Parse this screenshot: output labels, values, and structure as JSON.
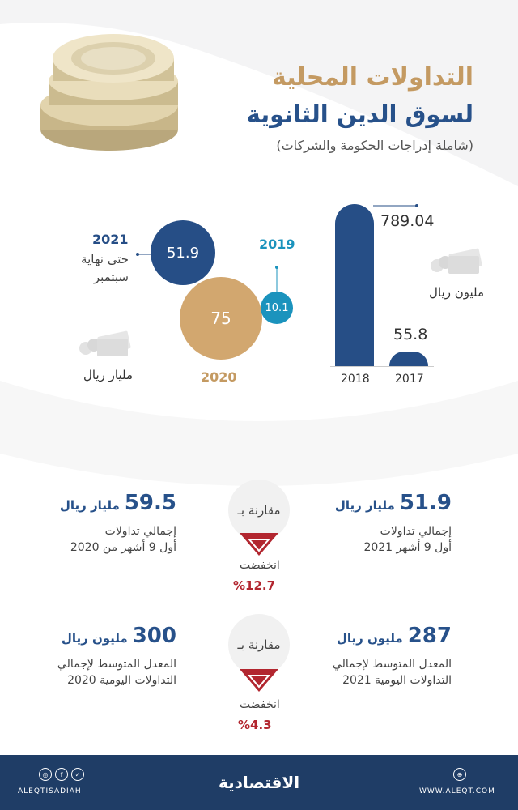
{
  "header": {
    "title_line1": "التداولات المحلية",
    "title_line2": "لسوق الدين الثانوية",
    "subtitle": "(شاملة إدراجات الحكومة والشركات)"
  },
  "chart_data": [
    {
      "type": "bar",
      "categories": [
        "2017",
        "2018"
      ],
      "values": [
        55.8,
        789.04
      ],
      "unit": "مليون ريال"
    },
    {
      "type": "bubble",
      "categories": [
        "2019",
        "2020",
        "2021"
      ],
      "values": [
        10.1,
        75,
        51.9
      ],
      "unit": "مليار ريال",
      "notes": {
        "2021": "حتى نهاية سبتمبر"
      }
    }
  ],
  "bars": {
    "y2017": {
      "label": "2017",
      "value": "55.8"
    },
    "y2018": {
      "label": "2018",
      "value": "789.04"
    },
    "unit": "مليون ريال"
  },
  "bubbles": {
    "y2021": {
      "year": "2021",
      "value": "51.9",
      "note_line1": "حتى نهاية",
      "note_line2": "سبتمبر"
    },
    "y2020": {
      "year": "2020",
      "value": "75"
    },
    "y2019": {
      "year": "2019",
      "value": "10.1"
    },
    "unit": "مليار ريال"
  },
  "comparisons": [
    {
      "right_value": "51.9",
      "right_unit": "مليار ريال",
      "right_desc1": "إجمالي تداولات",
      "right_desc2": "أول 9 أشهر 2021",
      "left_value": "59.5",
      "left_unit": "مليار ريال",
      "left_desc1": "إجمالي تداولات",
      "left_desc2": "أول 9 أشهر من 2020",
      "compare_label": "مقارنة بـ",
      "change_label": "انخفضت",
      "change_pct": "%12.7"
    },
    {
      "right_value": "287",
      "right_unit": "مليون ريال",
      "right_desc1": "المعدل المتوسط لإجمالي",
      "right_desc2": "التداولات اليومية 2021",
      "left_value": "300",
      "left_unit": "مليون ريال",
      "left_desc1": "المعدل المتوسط لإجمالي",
      "left_desc2": "التداولات اليومية 2020",
      "compare_label": "مقارنة بـ",
      "change_label": "انخفضت",
      "change_pct": "%4.3"
    }
  ],
  "footer": {
    "handle": "ALEQTISADIAH",
    "brand": "الاقتصادية",
    "website": "WWW.ALEQT.COM",
    "social_icons": [
      "instagram-icon",
      "facebook-icon",
      "twitter-icon"
    ],
    "web_icon": "globe-icon"
  },
  "colors": {
    "navy": "#264e86",
    "gold": "#d2a76f",
    "teal": "#1b93bd",
    "red": "#b2262f",
    "footer": "#1f3d66"
  }
}
